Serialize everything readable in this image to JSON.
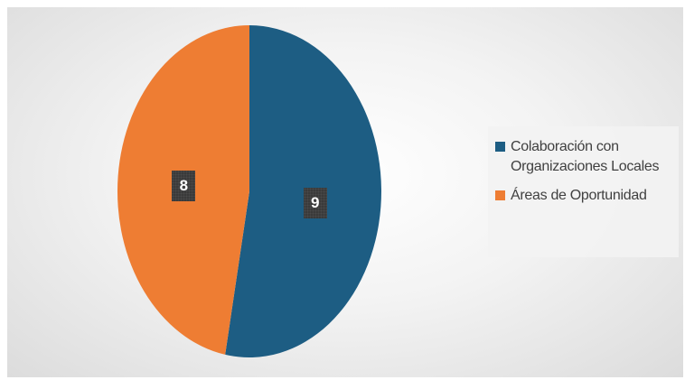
{
  "chart_data": {
    "type": "pie",
    "categories": [
      "Colaboración con Organizaciones Locales",
      "Áreas de Oportunidad"
    ],
    "values": [
      9,
      8
    ],
    "colors": [
      "#1d5d83",
      "#ee7d33"
    ],
    "data_labels": [
      "9",
      "8"
    ],
    "legend_position": "right",
    "start_angle": "top, clockwise"
  },
  "legend": {
    "items": [
      {
        "label": "Colaboración con Organizaciones Locales",
        "color": "#1d5d83"
      },
      {
        "label": "Áreas de Oportunidad",
        "color": "#ee7d33"
      }
    ]
  }
}
